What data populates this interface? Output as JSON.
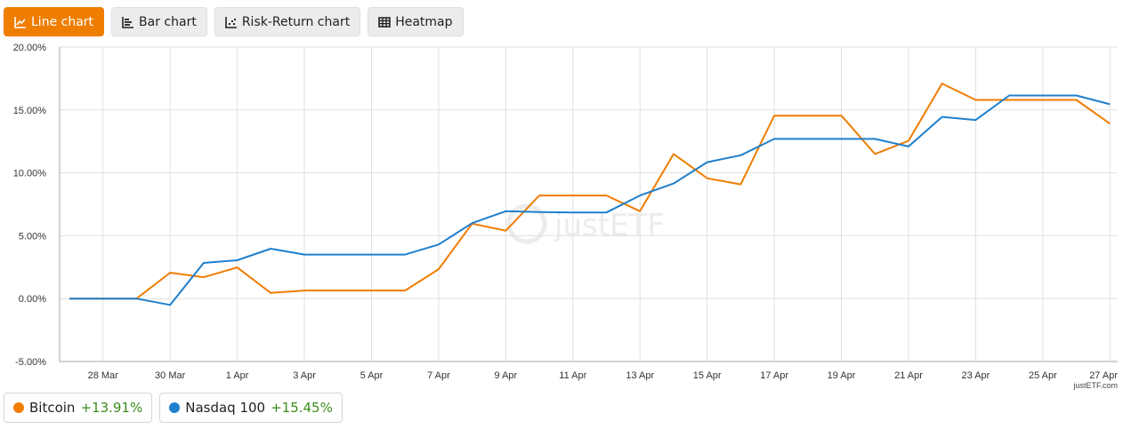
{
  "tabs": [
    {
      "label": "Line chart",
      "icon": "line-chart-icon",
      "active": true
    },
    {
      "label": "Bar chart",
      "icon": "bar-chart-icon",
      "active": false
    },
    {
      "label": "Risk-Return chart",
      "icon": "scatter-chart-icon",
      "active": false
    },
    {
      "label": "Heatmap",
      "icon": "grid-icon",
      "active": false
    }
  ],
  "colors": {
    "accent": "#ef7d00",
    "bitcoin": "#ef7d00",
    "nasdaq": "#1f7fcc",
    "positive": "#3c8c1e",
    "grid": "#e0e0e0"
  },
  "watermark": "justETF",
  "credit": "justETF.com",
  "legend": [
    {
      "name": "Bitcoin",
      "perf": "+13.91%",
      "color": "#ef7d00"
    },
    {
      "name": "Nasdaq 100",
      "perf": "+15.45%",
      "color": "#1f7fcc"
    }
  ],
  "chart_data": {
    "type": "line",
    "title": "",
    "xlabel": "",
    "ylabel": "",
    "ylim": [
      -5,
      20
    ],
    "yticks": [
      "20.00%",
      "15.00%",
      "10.00%",
      "5.00%",
      "0.00%",
      "-5.00%"
    ],
    "ytick_values": [
      20,
      15,
      10,
      5,
      0,
      -5
    ],
    "xtick_labels": [
      "28 Mar",
      "30 Mar",
      "1 Apr",
      "3 Apr",
      "5 Apr",
      "7 Apr",
      "9 Apr",
      "11 Apr",
      "13 Apr",
      "15 Apr",
      "17 Apr",
      "19 Apr",
      "21 Apr",
      "23 Apr",
      "25 Apr",
      "27 Apr"
    ],
    "grid": true,
    "legend_position": "bottom",
    "x": [
      "27 Mar",
      "28 Mar",
      "29 Mar",
      "30 Mar",
      "31 Mar",
      "1 Apr",
      "2 Apr",
      "3 Apr",
      "4 Apr",
      "5 Apr",
      "6 Apr",
      "7 Apr",
      "8 Apr",
      "9 Apr",
      "10 Apr",
      "11 Apr",
      "12 Apr",
      "13 Apr",
      "14 Apr",
      "15 Apr",
      "16 Apr",
      "17 Apr",
      "18 Apr",
      "19 Apr",
      "20 Apr",
      "21 Apr",
      "22 Apr",
      "23 Apr",
      "24 Apr",
      "25 Apr",
      "26 Apr",
      "27 Apr"
    ],
    "series": [
      {
        "name": "Bitcoin",
        "color": "#ef7d00",
        "values": [
          0,
          0,
          0,
          2.06,
          1.7,
          2.48,
          0.45,
          0.64,
          0.64,
          0.64,
          0.64,
          2.34,
          5.96,
          5.4,
          8.2,
          8.2,
          8.2,
          6.95,
          11.5,
          9.57,
          9.08,
          14.55,
          14.55,
          14.55,
          11.5,
          12.55,
          17.1,
          15.8,
          15.8,
          15.8,
          15.8,
          13.91
        ]
      },
      {
        "name": "Nasdaq 100",
        "color": "#1f7fcc",
        "values": [
          0,
          0,
          0,
          -0.5,
          2.84,
          3.05,
          3.97,
          3.5,
          3.5,
          3.5,
          3.5,
          4.3,
          6.0,
          6.95,
          6.88,
          6.85,
          6.85,
          8.2,
          9.15,
          10.85,
          11.4,
          12.7,
          12.7,
          12.7,
          12.7,
          12.1,
          14.45,
          14.2,
          16.15,
          16.15,
          16.15,
          15.45
        ]
      }
    ]
  }
}
